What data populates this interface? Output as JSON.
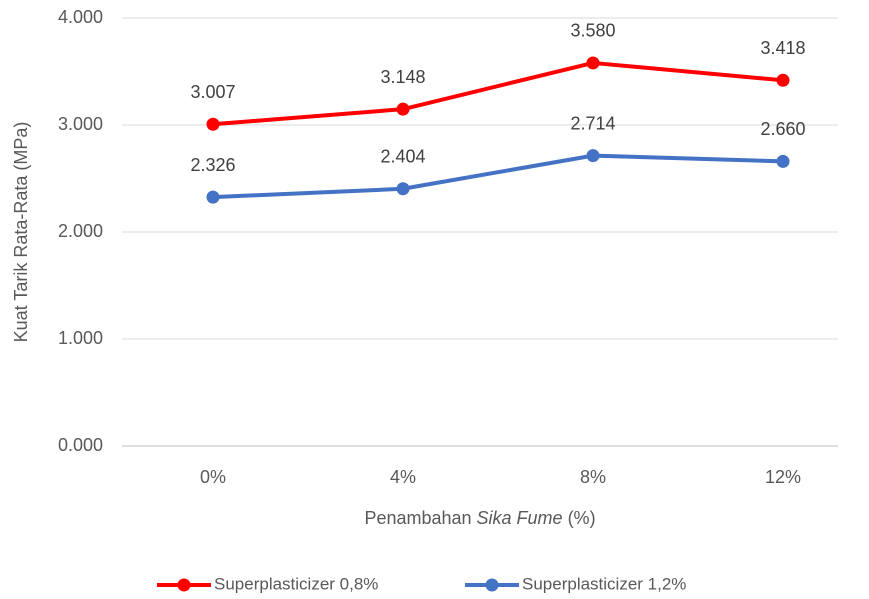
{
  "chart_data": {
    "type": "line",
    "y_label": "Kuat Tarik Rata-Rata (MPa)",
    "x_label_parts": [
      "Penambahan ",
      "Sika Fume",
      " (%)"
    ],
    "categories": [
      "0%",
      "4%",
      "8%",
      "12%"
    ],
    "series": [
      {
        "name": "Superplasticizer 0,8%",
        "color": "#ff0000",
        "values": [
          3.007,
          3.148,
          3.58,
          3.418
        ],
        "value_labels": [
          "3.007",
          "3.148",
          "3.580",
          "3.418"
        ]
      },
      {
        "name": "Superplasticizer 1,2%",
        "color": "#4472c4",
        "values": [
          2.326,
          2.404,
          2.714,
          2.66
        ],
        "value_labels": [
          "2.326",
          "2.404",
          "2.714",
          "2.660"
        ]
      }
    ],
    "ylim": [
      0,
      4
    ],
    "yticks": [
      {
        "value": 0,
        "label": "0.000"
      },
      {
        "value": 1,
        "label": "1.000"
      },
      {
        "value": 2,
        "label": "2.000"
      },
      {
        "value": 3,
        "label": "3.000"
      },
      {
        "value": 4,
        "label": "4.000"
      }
    ],
    "grid": true,
    "legend": "bottom"
  }
}
